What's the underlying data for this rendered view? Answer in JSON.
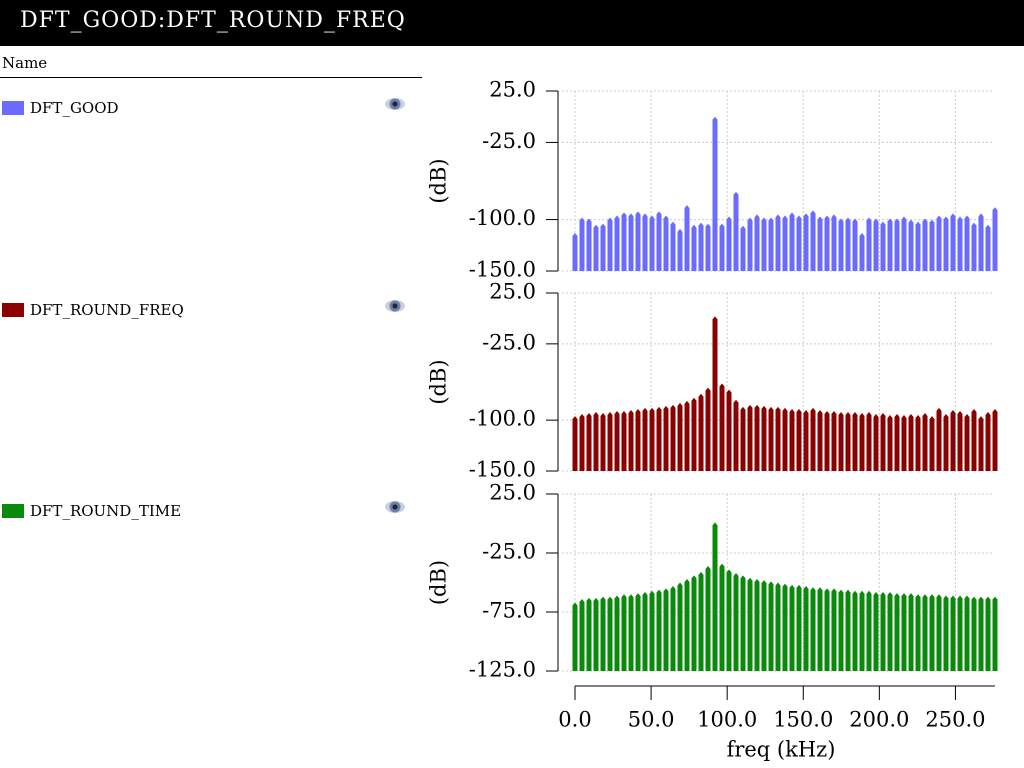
{
  "window": {
    "title": "DFT_GOOD:DFT_ROUND_FREQ",
    "column_header": "Name"
  },
  "chart_data": [
    {
      "type": "bar",
      "ylabel": "(dB)",
      "xlim": [
        0,
        276
      ],
      "ylim": [
        -150,
        25
      ],
      "yticks": [
        {
          "value": 25,
          "label": "25.0"
        },
        {
          "value": -25,
          "label": "-25.0"
        },
        {
          "value": -100,
          "label": "-100.0"
        },
        {
          "value": -150,
          "label": "-150.0"
        }
      ],
      "grid": true,
      "x": [
        0,
        4.6,
        9.2,
        13.8,
        18.4,
        23,
        27.6,
        32.2,
        36.8,
        41.4,
        46,
        50.6,
        55.2,
        59.8,
        64.4,
        69,
        73.6,
        78.2,
        82.8,
        87.4,
        92,
        96.6,
        101.2,
        105.8,
        110.4,
        115,
        119.6,
        124.2,
        128.8,
        133.4,
        138,
        142.6,
        147.2,
        151.8,
        156.4,
        161,
        165.6,
        170.2,
        174.8,
        179.4,
        184,
        188.6,
        193.2,
        197.8,
        202.4,
        207,
        211.6,
        216.2,
        220.8,
        225.4,
        230,
        234.6,
        239.2,
        243.8,
        248.4,
        253,
        257.6,
        262.2,
        266.8,
        271.4,
        276
      ],
      "series": [
        {
          "name": "DFT_GOOD",
          "color": "#6b6bff",
          "values": [
            -113,
            -98,
            -99,
            -105,
            -104,
            -98,
            -96,
            -93,
            -94,
            -92,
            -94,
            -96,
            -92,
            -96,
            -102,
            -109,
            -86,
            -105,
            -103,
            -104,
            0,
            -104,
            -97,
            -73,
            -106,
            -98,
            -95,
            -98,
            -98,
            -95,
            -96,
            -93,
            -96,
            -94,
            -91,
            -97,
            -96,
            -95,
            -99,
            -98,
            -99,
            -113,
            -98,
            -99,
            -102,
            -99,
            -99,
            -97,
            -100,
            -102,
            -99,
            -100,
            -96,
            -97,
            -94,
            -97,
            -96,
            -103,
            -94,
            -105,
            -88
          ]
        }
      ]
    },
    {
      "type": "bar",
      "ylabel": "(dB)",
      "xlim": [
        0,
        276
      ],
      "ylim": [
        -150,
        25
      ],
      "yticks": [
        {
          "value": 25,
          "label": "25.0"
        },
        {
          "value": -25,
          "label": "-25.0"
        },
        {
          "value": -100,
          "label": "-100.0"
        },
        {
          "value": -150,
          "label": "-150.0"
        }
      ],
      "grid": true,
      "x": [
        0,
        4.6,
        9.2,
        13.8,
        18.4,
        23,
        27.6,
        32.2,
        36.8,
        41.4,
        46,
        50.6,
        55.2,
        59.8,
        64.4,
        69,
        73.6,
        78.2,
        82.8,
        87.4,
        92,
        96.6,
        101.2,
        105.8,
        110.4,
        115,
        119.6,
        124.2,
        128.8,
        133.4,
        138,
        142.6,
        147.2,
        151.8,
        156.4,
        161,
        165.6,
        170.2,
        174.8,
        179.4,
        184,
        188.6,
        193.2,
        197.8,
        202.4,
        207,
        211.6,
        216.2,
        220.8,
        225.4,
        230,
        234.6,
        239.2,
        243.8,
        248.4,
        253,
        257.6,
        262.2,
        266.8,
        271.4,
        276
      ],
      "series": [
        {
          "name": "DFT_ROUND_FREQ",
          "color": "#8b0000",
          "values": [
            -96,
            -94,
            -93,
            -92,
            -93,
            -92,
            -91,
            -91,
            -90,
            -89,
            -88,
            -88,
            -87,
            -86,
            -85,
            -83,
            -81,
            -78,
            -74,
            -68,
            2,
            -64,
            -70,
            -80,
            -87,
            -85,
            -85,
            -86,
            -87,
            -87,
            -88,
            -89,
            -89,
            -90,
            -88,
            -90,
            -91,
            -91,
            -92,
            -92,
            -92,
            -93,
            -92,
            -94,
            -93,
            -95,
            -94,
            -95,
            -94,
            -95,
            -93,
            -96,
            -88,
            -94,
            -90,
            -91,
            -94,
            -89,
            -96,
            -92,
            -89
          ]
        }
      ]
    },
    {
      "type": "bar",
      "ylabel": "(dB)",
      "xlabel": "freq (kHz)",
      "xlim": [
        0,
        276
      ],
      "ylim": [
        -125,
        25
      ],
      "xticks": [
        {
          "value": 0,
          "label": "0.0"
        },
        {
          "value": 50,
          "label": "50.0"
        },
        {
          "value": 100,
          "label": "100.0"
        },
        {
          "value": 150,
          "label": "150.0"
        },
        {
          "value": 200,
          "label": "200.0"
        },
        {
          "value": 250,
          "label": "250.0"
        }
      ],
      "yticks": [
        {
          "value": 25,
          "label": "25.0"
        },
        {
          "value": -25,
          "label": "-25.0"
        },
        {
          "value": -75,
          "label": "-75.0"
        },
        {
          "value": -125,
          "label": "-125.0"
        }
      ],
      "grid": true,
      "x": [
        0,
        4.6,
        9.2,
        13.8,
        18.4,
        23,
        27.6,
        32.2,
        36.8,
        41.4,
        46,
        50.6,
        55.2,
        59.8,
        64.4,
        69,
        73.6,
        78.2,
        82.8,
        87.4,
        92,
        96.6,
        101.2,
        105.8,
        110.4,
        115,
        119.6,
        124.2,
        128.8,
        133.4,
        138,
        142.6,
        147.2,
        151.8,
        156.4,
        161,
        165.6,
        170.2,
        174.8,
        179.4,
        184,
        188.6,
        193.2,
        197.8,
        202.4,
        207,
        211.6,
        216.2,
        220.8,
        225.4,
        230,
        234.6,
        239.2,
        243.8,
        248.4,
        253,
        257.6,
        262.2,
        266.8,
        271.4,
        276
      ],
      "series": [
        {
          "name": "DFT_ROUND_TIME",
          "color": "#0a8a0a",
          "values": [
            -67,
            -64,
            -63,
            -63,
            -62,
            -62,
            -61,
            -60,
            -60,
            -59,
            -58,
            -57,
            -56,
            -55,
            -53,
            -50,
            -47,
            -44,
            -41,
            -36,
            1,
            -34,
            -39,
            -42,
            -44,
            -46,
            -47,
            -48,
            -49,
            -50,
            -51,
            -52,
            -52,
            -53,
            -54,
            -54,
            -55,
            -55,
            -56,
            -56,
            -57,
            -57,
            -57,
            -58,
            -58,
            -58,
            -59,
            -59,
            -59,
            -60,
            -60,
            -60,
            -60,
            -61,
            -61,
            -61,
            -61,
            -62,
            -62,
            -62,
            -62
          ]
        }
      ]
    }
  ]
}
